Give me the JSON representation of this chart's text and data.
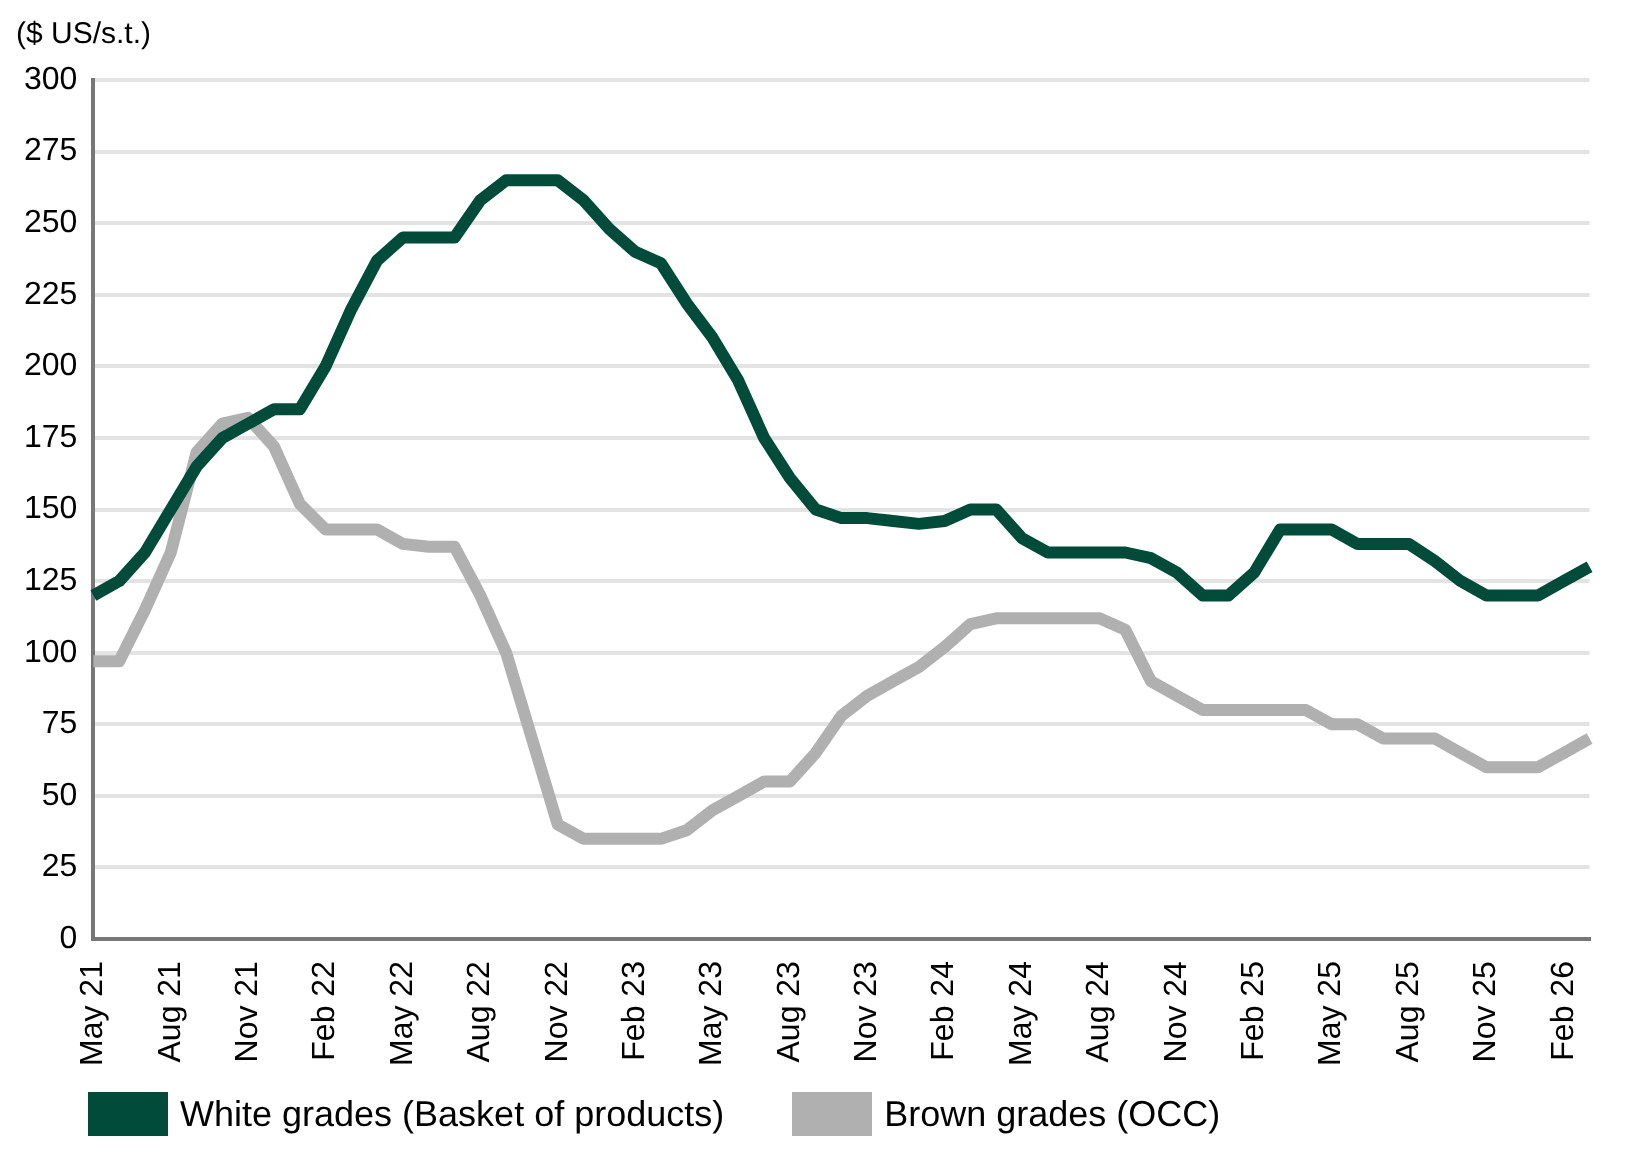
{
  "chart_data": {
    "type": "line",
    "ylabel": "($ US/s.t.)",
    "categories": [
      "May 21",
      null,
      null,
      "Aug 21",
      null,
      null,
      "Nov 21",
      null,
      null,
      "Feb 22",
      null,
      null,
      "May 22",
      null,
      null,
      "Aug 22",
      null,
      null,
      "Nov 22",
      null,
      null,
      "Feb 23",
      null,
      null,
      "May 23",
      null,
      null,
      "Aug 23",
      null,
      null,
      "Nov 23",
      null,
      null,
      "Feb 24",
      null,
      null,
      "May 24",
      null,
      null,
      "Aug 24",
      null,
      null,
      "Nov 24",
      null,
      null,
      "Feb 25",
      null,
      null,
      "May 25",
      null,
      null,
      "Aug 25",
      null,
      null,
      "Nov 25",
      null,
      null,
      "Feb 26",
      null
    ],
    "series": [
      {
        "name": "White grades (Basket of products)",
        "color": "#004b3a",
        "values": [
          120,
          125,
          135,
          150,
          165,
          175,
          180,
          185,
          185,
          200,
          220,
          237,
          245,
          245,
          245,
          258,
          265,
          265,
          265,
          258,
          248,
          240,
          236,
          222,
          210,
          195,
          175,
          161,
          150,
          147,
          147,
          146,
          145,
          146,
          150,
          150,
          140,
          135,
          135,
          135,
          135,
          133,
          128,
          120,
          120,
          128,
          143,
          143,
          143,
          138,
          138,
          138,
          132,
          125,
          120,
          120,
          120,
          125,
          130
        ]
      },
      {
        "name": "Brown grades (OCC)",
        "color": "#b0b0b0",
        "values": [
          97,
          97,
          115,
          135,
          170,
          180,
          182,
          172,
          152,
          143,
          143,
          143,
          138,
          137,
          137,
          120,
          100,
          70,
          40,
          35,
          35,
          35,
          35,
          38,
          45,
          50,
          55,
          55,
          65,
          78,
          85,
          90,
          95,
          102,
          110,
          112,
          112,
          112,
          112,
          112,
          108,
          90,
          85,
          80,
          80,
          80,
          80,
          80,
          75,
          75,
          70,
          70,
          70,
          65,
          60,
          60,
          60,
          65,
          70
        ]
      }
    ],
    "ylim": [
      0,
      300
    ],
    "yticks": [
      0,
      25,
      50,
      75,
      100,
      125,
      150,
      175,
      200,
      225,
      250,
      275,
      300
    ],
    "grid": "y",
    "legend": "bottom",
    "marker": "none",
    "line_style": "solid"
  }
}
